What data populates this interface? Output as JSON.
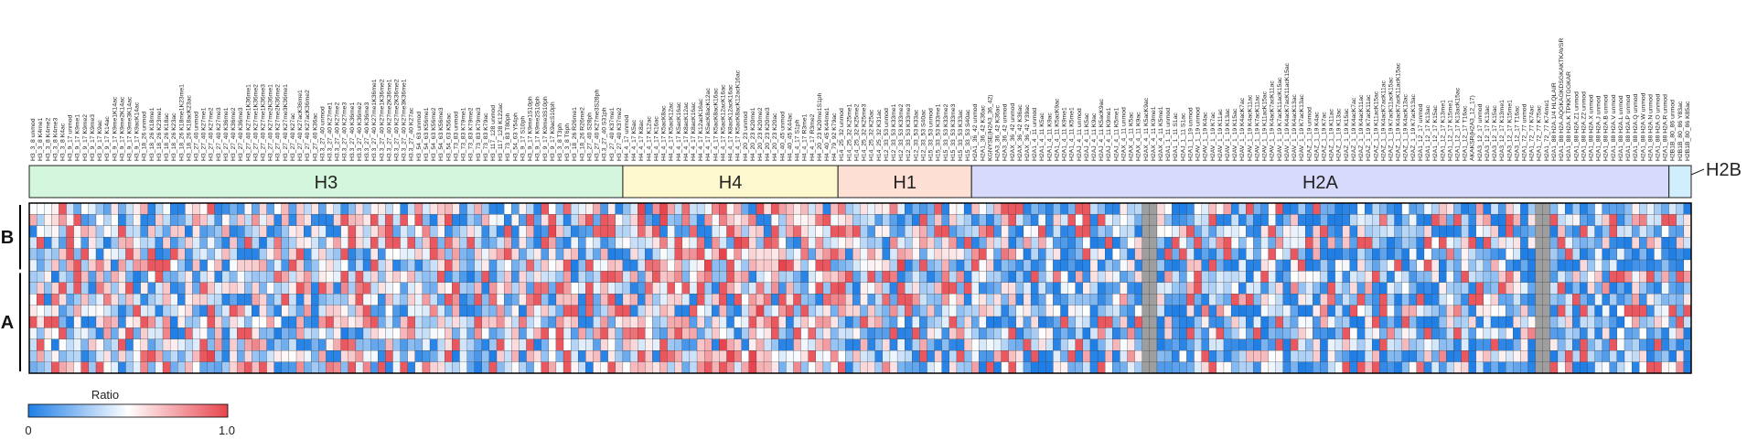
{
  "chart_data": {
    "type": "heatmap",
    "value_label": "Ratio",
    "value_range": [
      0,
      1.0
    ],
    "legend": {
      "title": "Ratio",
      "min_label": "0",
      "max_label": "1.0",
      "colors": [
        "#1f7fe6",
        "#ffffff",
        "#e8444d"
      ]
    },
    "row_groups": [
      {
        "label": "B",
        "rows": 6
      },
      {
        "label": "A",
        "rows": 9
      }
    ],
    "column_groups": [
      {
        "label": "H3",
        "count": 80,
        "color": "#d4f6dc"
      },
      {
        "label": "H4",
        "count": 29,
        "color": "#fef8cf"
      },
      {
        "label": "H1",
        "count": 18,
        "color": "#fddfd4"
      },
      {
        "label": "H2A",
        "count": 94,
        "color": "#d8dafc"
      },
      {
        "label": "H2B",
        "count": 3,
        "color": "#d0eefc"
      }
    ],
    "columns": [
      "H3_3_8 unmod",
      "H3_3_8 K4me1",
      "H3_3_8 K4me2",
      "H3_3_8 K4me3",
      "H3_3_8 K4ac",
      "H3_9_17 unmod",
      "H3_9_17 K9me1",
      "H3_9_17 K9me2",
      "H3_9_17 K9me3",
      "H3_9_17 K9ac",
      "H3_9_17 K14ac",
      "H3_9_17 K9me1K14ac",
      "H3_9_17 K9me2K14ac",
      "H3_9_17 K9me3K14ac",
      "H3_9_17 K9acK14ac",
      "H3_18_26 unmod",
      "H3_18_26 K18me1",
      "H3_18_26 K23me1",
      "H3_18_26 K18ac",
      "H3_18_26 K23ac",
      "H3_18_26 K18me1K23me1",
      "H3_18_26 K18acK23ac",
      "H3_27_40 unmod",
      "H3_27_40 K27me1",
      "H3_27_40 K27me2",
      "H3_27_40 K27me3",
      "H3_27_40 K36me1",
      "H3_27_40 K36me2",
      "H3_27_40 K36me3",
      "H3_27_40 K27me1K36me1",
      "H3_27_40 K27me1K36me2",
      "H3_27_40 K27me1K36me3",
      "H3_27_40 K27me2K36me1",
      "H3_27_40 K27me2K36me2",
      "H3_27_40 K27me3K36me1",
      "H3_27_40 K27ac",
      "H3_27_40 K27acK36me1",
      "H3_27_40 K27acK36me2",
      "H3_27_40 K36ac",
      "H3.3_27_40 unmod",
      "H3.3_27_40 K27me1",
      "H3.3_27_40 K27me2",
      "H3.3_27_40 K27me3",
      "H3.3_27_40 K36me1",
      "H3.3_27_40 K36me2",
      "H3.3_27_40 K36me3",
      "H3.3_27_40 K27me1K36me1",
      "H3.3_27_40 K27me1K36me2",
      "H3.3_27_40 K27me2K36me1",
      "H3.3_27_40 K27me2K36me2",
      "H3.3_27_40 K27me3K36me1",
      "H3.3_27_40 K27ac",
      "H3_54_63 unmod",
      "H3_54_63 K56me1",
      "H3_54_63 K56me2",
      "H3_54_63 K56me3",
      "H3_54_63 K56ac",
      "H3_73_83 unmod",
      "H3_73_83 K79me1",
      "H3_73_83 K79me2",
      "H3_73_83 K79me3",
      "H3_73_83 K79ac",
      "H3_117_128 unmod",
      "H3_117_128 K122ac",
      "H3_73_83 T80ph",
      "H3_54_63 Y54ph",
      "H3_9_17 S10ph",
      "H3_9_17 K9me1S10ph",
      "H3_9_17 K9me2S10ph",
      "H3_9_17 K9me3S10ph",
      "H3_9_17 K9acS10ph",
      "H3_3_8 T3ph",
      "H3_3_8 T6ph",
      "H3_18_26 R26me1",
      "H3_18_26 R26me2",
      "H3_27_40 S28ph",
      "H3_27_40 K27me3S28ph",
      "H3.3_27_40 S31ph",
      "H3_27_40 K37me1",
      "H3_27_40 K37me2",
      "H4_4_17 unmod",
      "H4_4_17 K5ac",
      "H4_4_17 K8ac",
      "H4_4_17 K12ac",
      "H4_4_17 K16ac",
      "H4_4_17 K5acK8ac",
      "H4_4_17 K5acK12ac",
      "H4_4_17 K5acK16ac",
      "H4_4_17 K8acK12ac",
      "H4_4_17 K8acK16ac",
      "H4_4_17 K12acK16ac",
      "H4_4_17 K5acK8acK12ac",
      "H4_4_17 K5acK8acK16ac",
      "H4_4_17 K5acK12acK16ac",
      "H4_4_17 K8acK12acK16ac",
      "H4_4_17 K5acK8acK12acK16ac",
      "H4_20_23 unmod",
      "H4_20_23 K20me1",
      "H4_20_23 K20me2",
      "H4_20_23 K20me3",
      "H4_20_23 K20ac",
      "H4_40_45 unmod",
      "H4_40_45 K44ac",
      "H4_4_17 S1ph",
      "H4_4_17 R3me1",
      "H4_4_17 R3me2",
      "H4_20_23 K20me1S1ph",
      "H4_40_45 K44me1",
      "H4_79_92 K79ac",
      "H14_25_32 unmod",
      "H14_25_32 K25me1",
      "H14_25_32 K25me2",
      "H14_25_32 K25me3",
      "H14_25_32 K25ac",
      "H14_25_32 K31ac",
      "H12_33_53 unmod",
      "H12_33_53 K33me1",
      "H12_33_53 K33me2",
      "H12_33_53 K33me3",
      "H12_33_53 K33ac",
      "H12_33_53 S40ac",
      "H15_33_53 unmod",
      "H15_33_53 K33me1",
      "H15_33_53 K33me2",
      "H15_33_53 K33me3",
      "H15_33_53 K33ac",
      "H15_33_53 S40ac",
      "H2A1_36_42 unmod",
      "H2A1_36_42 K36ac",
      "KGNYSE(H2A3_36_42)",
      "H2A3_36_42 K36ac",
      "H2A3_36_42 unmod",
      "H2AX_36_42 unmod",
      "H2AX_36_42 K36ac",
      "H2AX_36_42 Y39ac",
      "H2A1_4_11 unmod",
      "H2A1_4_11 K5ac",
      "H2A1_4_11 K9ac",
      "H2A1_4_11 K5acK9ac",
      "H2A1_4_11 K9me1",
      "H2A1_4_11 K5me1",
      "H2AJ_4_11 unmod",
      "H2AJ_4_11 K5ac",
      "H2AJ_4_11 K9ac",
      "H2AJ_4_11 K5acK9ac",
      "H2AJ_4_11 K9me1",
      "H2AJ_4_11 K5me1",
      "H2AX_4_11 unmod",
      "H2AX_4_11 K5ac",
      "H2AX_4_11 K9ac",
      "H2AX_4_11 K5acK9ac",
      "H2AX_4_11 K9me1",
      "H2AX_4_11 K5me1",
      "H2A1_1_11 unmod",
      "H2A1_1_11 S1ac",
      "H2AJ_1_11 S1ac",
      "H2A1_1_19 unmod",
      "H2AV_1_19 unmod",
      "H2AV_1_19 K4ac",
      "H2AV_1_19 K7ac",
      "H2AV_1_19 K11ac",
      "H2AV_1_19 K13ac",
      "H2AV_1_19 K15ac",
      "H2AV_1_19 K4acK7ac",
      "H2AV_1_19 K4acK11ac",
      "H2AV_1_19 K7acK11ac",
      "H2AV_1_19 K11acK15ac",
      "H2AV_1_19 K4acK7acK11ac",
      "H2AV_1_19 K7acK11acK15ac",
      "H2AV_1_19 K4acK7acK11acK15ac",
      "H2AV_1_19 K4acK13ac",
      "H2AV_1_19 K7acK13ac",
      "H2AZ_1_19 unmod",
      "H2AZ_1_19 K4ac",
      "H2AZ_1_19 K7ac",
      "H2AZ_1_19 K11ac",
      "H2AZ_1_19 K13ac",
      "H2AZ_1_19 K15ac",
      "H2AZ_1_19 K4acK7ac",
      "H2AZ_1_19 K4acK11ac",
      "H2AZ_1_19 K7acK11ac",
      "H2AZ_1_19 K11acK15ac",
      "H2AZ_1_19 K4acK7acK11ac",
      "H2AZ_1_19 K7acK11acK15ac",
      "H2AZ_1_19 K4acK7acK11acK15ac",
      "H2AZ_1_19 K4acK13ac",
      "H2AZ_1_19 K7acK13ac",
      "H2A1_12_17 unmod",
      "H2A1_12_17 K13ac",
      "H2A1_12_17 K15ac",
      "H2A1_12_17 K13me1",
      "H2A1_12_17 K15me1",
      "H2A1_12_17 K13acK15ac",
      "H2A1_12_17 T16ac",
      "AKAKSR(H2A3_12_17)",
      "H2A3_12_17 unmod",
      "H2A3_12_17 K13ac",
      "H2A3_12_17 K15ac",
      "H2A3_12_17 K13me1",
      "H2A3_12_17 K15me1",
      "H2A3_12_17 T16ac",
      "H2A1_72_77 unmod",
      "H2A1_72_77 K74ac",
      "H2A1_72_77 K75ac",
      "H2A1_72_77 K74me1",
      "H2A1_88 H2A.1/4 HLQLAIR",
      "H2A1_88 H2A.AQGKAGKDSGKAKTKAVSR",
      "H2A1_88 H2A.K TPKKTGGKAR",
      "H2A1_88 H2A.Z1 unmod",
      "H2A1_88 H2A.Z2 unmod",
      "H2A1_88 H2A.X unmod",
      "H2A1_88 H2A.J unmod",
      "H2A1_88 H2A.B unmod",
      "H2A1_88 H2A.V unmod",
      "H2A1_88 H2A.L unmod",
      "H2A1_88 H2A.P unmod",
      "H2A1_88 H2A.Q unmod",
      "H2A1_88 H2A.W unmod",
      "H2A1_88 H2A.N unmod",
      "H2A1_88 H2A.O unmod",
      "H2A1_88 H2A.R unmod",
      "H2B1B_80_86 unmod",
      "H2B1B_80_86 Y83ac",
      "H2B1B_80_86 K85ac"
    ]
  }
}
